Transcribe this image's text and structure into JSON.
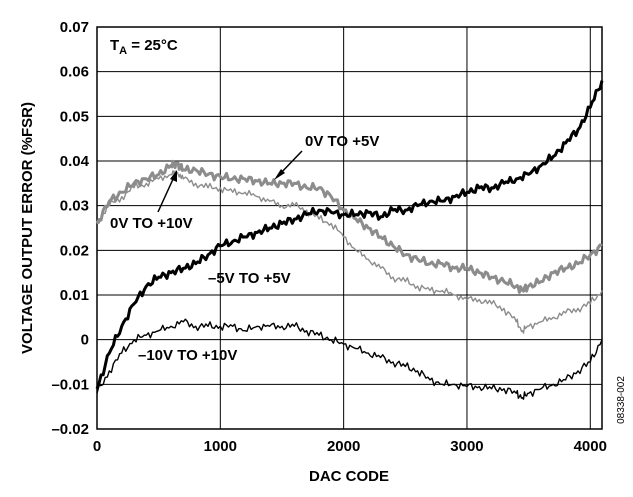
{
  "chart_data": {
    "type": "line",
    "xlabel": "DAC CODE",
    "ylabel": "VOLTAGE OUTPUT ERROR (%FSR)",
    "xlim": [
      0,
      4095
    ],
    "ylim": [
      -0.02,
      0.07
    ],
    "xticks": [
      0,
      1000,
      2000,
      3000,
      4000
    ],
    "xtick_labels": [
      "0",
      "1000",
      "2000",
      "3000",
      "4000"
    ],
    "yticks": [
      -0.02,
      -0.01,
      0,
      0.01,
      0.02,
      0.03,
      0.04,
      0.05,
      0.06,
      0.07
    ],
    "ytick_labels": [
      "–0.02",
      "–0.01",
      "0",
      "0.01",
      "0.02",
      "0.03",
      "0.04",
      "0.05",
      "0.06",
      "0.07"
    ],
    "grid": true,
    "condition": {
      "prefix": "T",
      "subscript": "A",
      "suffix": " = 25°C"
    },
    "figure_id": "08338-002",
    "series": [
      {
        "name": "0V TO +5V",
        "color": "#8c8c8c",
        "style": "thick",
        "x": [
          0,
          100,
          200,
          300,
          400,
          500,
          600,
          650,
          700,
          800,
          900,
          1000,
          1100,
          1200,
          1300,
          1400,
          1500,
          1600,
          1700,
          1800,
          1900,
          2000,
          2100,
          2200,
          2300,
          2400,
          2500,
          2600,
          2700,
          2800,
          2900,
          3000,
          3100,
          3200,
          3300,
          3400,
          3450,
          3500,
          3600,
          3700,
          3800,
          3900,
          4000,
          4095
        ],
        "y": [
          0.026,
          0.031,
          0.033,
          0.035,
          0.036,
          0.037,
          0.039,
          0.0395,
          0.038,
          0.038,
          0.037,
          0.0365,
          0.036,
          0.036,
          0.0355,
          0.035,
          0.035,
          0.035,
          0.034,
          0.034,
          0.032,
          0.029,
          0.027,
          0.025,
          0.023,
          0.021,
          0.019,
          0.018,
          0.017,
          0.017,
          0.016,
          0.016,
          0.015,
          0.014,
          0.013,
          0.012,
          0.011,
          0.012,
          0.013,
          0.015,
          0.016,
          0.017,
          0.019,
          0.021
        ]
      },
      {
        "name": "0V TO +10V",
        "color": "#8c8c8c",
        "style": "thin",
        "x": [
          0,
          100,
          200,
          300,
          400,
          500,
          600,
          650,
          700,
          800,
          900,
          1000,
          1100,
          1200,
          1300,
          1400,
          1500,
          1600,
          1700,
          1800,
          1900,
          2000,
          2100,
          2200,
          2300,
          2400,
          2500,
          2600,
          2700,
          2800,
          2900,
          3000,
          3100,
          3200,
          3300,
          3400,
          3450,
          3500,
          3600,
          3700,
          3800,
          3900,
          4000,
          4095
        ],
        "y": [
          0.026,
          0.03,
          0.032,
          0.034,
          0.035,
          0.036,
          0.037,
          0.0375,
          0.036,
          0.035,
          0.034,
          0.034,
          0.033,
          0.033,
          0.032,
          0.031,
          0.03,
          0.03,
          0.029,
          0.027,
          0.026,
          0.023,
          0.02,
          0.018,
          0.016,
          0.014,
          0.013,
          0.012,
          0.011,
          0.011,
          0.01,
          0.009,
          0.009,
          0.008,
          0.007,
          0.004,
          0.002,
          0.003,
          0.004,
          0.005,
          0.006,
          0.007,
          0.008,
          0.011
        ]
      },
      {
        "name": "–5V TO +5V",
        "color": "#000000",
        "style": "thick",
        "x": [
          0,
          100,
          200,
          300,
          400,
          500,
          600,
          700,
          800,
          900,
          1000,
          1100,
          1200,
          1300,
          1400,
          1500,
          1600,
          1700,
          1800,
          1900,
          2000,
          2100,
          2200,
          2300,
          2400,
          2500,
          2600,
          2700,
          2800,
          2900,
          3000,
          3100,
          3200,
          3300,
          3400,
          3500,
          3600,
          3700,
          3800,
          3900,
          4000,
          4095
        ],
        "y": [
          -0.011,
          -0.003,
          0.003,
          0.008,
          0.012,
          0.014,
          0.015,
          0.016,
          0.017,
          0.019,
          0.021,
          0.022,
          0.023,
          0.024,
          0.025,
          0.026,
          0.027,
          0.028,
          0.029,
          0.0285,
          0.028,
          0.028,
          0.0285,
          0.0275,
          0.029,
          0.029,
          0.03,
          0.031,
          0.031,
          0.032,
          0.033,
          0.034,
          0.034,
          0.035,
          0.036,
          0.037,
          0.039,
          0.041,
          0.044,
          0.047,
          0.052,
          0.058
        ]
      },
      {
        "name": "–10V TO +10V",
        "color": "#000000",
        "style": "thin",
        "x": [
          0,
          100,
          200,
          300,
          400,
          500,
          600,
          700,
          800,
          900,
          1000,
          1100,
          1200,
          1300,
          1400,
          1500,
          1600,
          1700,
          1800,
          1900,
          2000,
          2100,
          2200,
          2300,
          2400,
          2500,
          2600,
          2700,
          2800,
          2900,
          3000,
          3100,
          3200,
          3300,
          3400,
          3450,
          3500,
          3600,
          3700,
          3800,
          3900,
          4000,
          4095
        ],
        "y": [
          -0.012,
          -0.007,
          -0.003,
          0.0,
          0.001,
          0.002,
          0.003,
          0.004,
          0.003,
          0.003,
          0.003,
          0.003,
          0.002,
          0.003,
          0.003,
          0.003,
          0.003,
          0.002,
          0.001,
          0.0,
          -0.001,
          -0.002,
          -0.003,
          -0.004,
          -0.005,
          -0.006,
          -0.007,
          -0.009,
          -0.01,
          -0.01,
          -0.0105,
          -0.0105,
          -0.011,
          -0.011,
          -0.012,
          -0.013,
          -0.012,
          -0.011,
          -0.01,
          -0.009,
          -0.007,
          -0.005,
          0.0
        ]
      }
    ],
    "annotations": [
      {
        "text": "0V TO +5V"
      },
      {
        "text": "0V TO +10V"
      },
      {
        "text": "–5V TO +5V"
      },
      {
        "text": "–10V TO +10V"
      }
    ]
  }
}
